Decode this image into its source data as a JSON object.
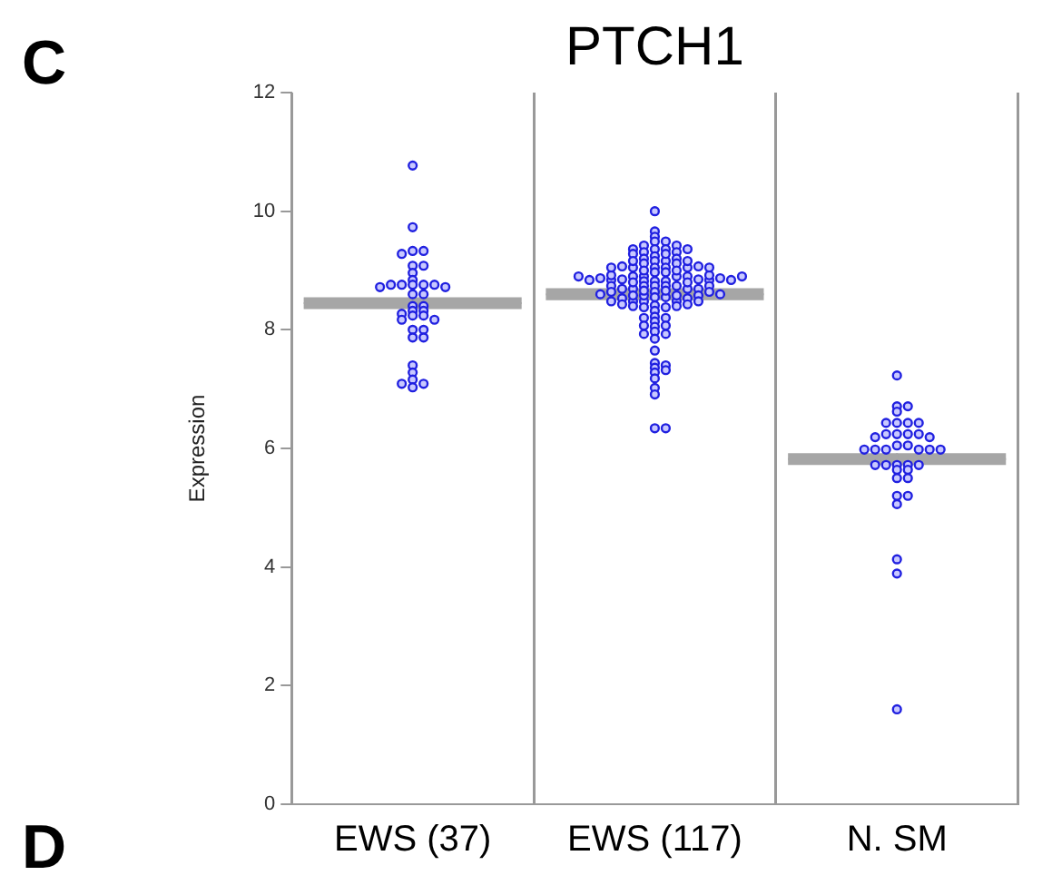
{
  "chart_data": {
    "type": "scatter",
    "title": "PTCH1",
    "ylabel": "Expression",
    "categories": [
      "EWS (37)",
      "EWS (117)",
      "N. SM"
    ],
    "ylim": [
      0,
      12
    ],
    "yticks": [
      0,
      2,
      4,
      6,
      8,
      10,
      12
    ],
    "grid": "x",
    "marker": "circle",
    "annotations": [
      "C",
      "D"
    ],
    "series": [
      {
        "type": "scatter",
        "color": "#2020e0",
        "x": [
          "EWS (37)",
          "EWS (37)",
          "EWS (37)",
          "EWS (37)",
          "EWS (37)",
          "EWS (37)",
          "EWS (37)",
          "EWS (37)",
          "EWS (37)",
          "EWS (37)",
          "EWS (37)",
          "EWS (37)",
          "EWS (37)",
          "EWS (37)",
          "EWS (37)",
          "EWS (37)",
          "EWS (37)",
          "EWS (37)",
          "EWS (37)",
          "EWS (37)",
          "EWS (37)",
          "EWS (37)",
          "EWS (37)",
          "EWS (37)",
          "EWS (37)",
          "EWS (37)",
          "EWS (37)",
          "EWS (37)",
          "EWS (37)",
          "EWS (37)",
          "EWS (37)",
          "EWS (37)",
          "EWS (37)",
          "EWS (37)",
          "EWS (37)",
          "EWS (37)",
          "EWS (37)",
          "EWS (117)",
          "EWS (117)",
          "EWS (117)",
          "EWS (117)",
          "EWS (117)",
          "EWS (117)",
          "EWS (117)",
          "EWS (117)",
          "EWS (117)",
          "EWS (117)",
          "EWS (117)",
          "EWS (117)",
          "EWS (117)",
          "EWS (117)",
          "EWS (117)",
          "EWS (117)",
          "EWS (117)",
          "EWS (117)",
          "EWS (117)",
          "EWS (117)",
          "EWS (117)",
          "EWS (117)",
          "EWS (117)",
          "EWS (117)",
          "EWS (117)",
          "EWS (117)",
          "EWS (117)",
          "EWS (117)",
          "EWS (117)",
          "EWS (117)",
          "EWS (117)",
          "EWS (117)",
          "EWS (117)",
          "EWS (117)",
          "EWS (117)",
          "EWS (117)",
          "EWS (117)",
          "EWS (117)",
          "EWS (117)",
          "EWS (117)",
          "EWS (117)",
          "EWS (117)",
          "EWS (117)",
          "EWS (117)",
          "EWS (117)",
          "EWS (117)",
          "EWS (117)",
          "EWS (117)",
          "EWS (117)",
          "EWS (117)",
          "EWS (117)",
          "EWS (117)",
          "EWS (117)",
          "EWS (117)",
          "EWS (117)",
          "EWS (117)",
          "EWS (117)",
          "EWS (117)",
          "EWS (117)",
          "EWS (117)",
          "EWS (117)",
          "EWS (117)",
          "EWS (117)",
          "EWS (117)",
          "EWS (117)",
          "EWS (117)",
          "EWS (117)",
          "EWS (117)",
          "EWS (117)",
          "EWS (117)",
          "EWS (117)",
          "EWS (117)",
          "EWS (117)",
          "EWS (117)",
          "EWS (117)",
          "EWS (117)",
          "EWS (117)",
          "EWS (117)",
          "EWS (117)",
          "EWS (117)",
          "EWS (117)",
          "EWS (117)",
          "EWS (117)",
          "EWS (117)",
          "EWS (117)",
          "EWS (117)",
          "EWS (117)",
          "EWS (117)",
          "EWS (117)",
          "EWS (117)",
          "EWS (117)",
          "EWS (117)",
          "EWS (117)",
          "EWS (117)",
          "EWS (117)",
          "EWS (117)",
          "EWS (117)",
          "EWS (117)",
          "EWS (117)",
          "EWS (117)",
          "EWS (117)",
          "EWS (117)",
          "EWS (117)",
          "EWS (117)",
          "EWS (117)",
          "EWS (117)",
          "EWS (117)",
          "EWS (117)",
          "EWS (117)",
          "EWS (117)",
          "EWS (117)",
          "EWS (117)",
          "EWS (117)",
          "EWS (117)",
          "EWS (117)",
          "EWS (117)",
          "EWS (117)",
          "N. SM",
          "N. SM",
          "N. SM",
          "N. SM",
          "N. SM",
          "N. SM",
          "N. SM",
          "N. SM",
          "N. SM",
          "N. SM",
          "N. SM",
          "N. SM",
          "N. SM",
          "N. SM",
          "N. SM",
          "N. SM",
          "N. SM",
          "N. SM",
          "N. SM",
          "N. SM",
          "N. SM",
          "N. SM",
          "N. SM",
          "N. SM",
          "N. SM",
          "N. SM",
          "N. SM",
          "N. SM",
          "N. SM",
          "N. SM",
          "N. SM",
          "N. SM",
          "N. SM",
          "N. SM",
          "N. SM",
          "N. SM",
          "N. SM"
        ],
        "values": [
          10.77,
          9.73,
          9.33,
          9.33,
          9.28,
          9.08,
          9.08,
          8.96,
          8.84,
          8.76,
          8.76,
          8.76,
          8.76,
          8.76,
          8.72,
          8.72,
          8.6,
          8.6,
          8.4,
          8.4,
          8.32,
          8.32,
          8.27,
          8.24,
          8.24,
          8.17,
          8.17,
          8.0,
          8.0,
          7.87,
          7.87,
          7.4,
          7.28,
          7.16,
          7.09,
          7.09,
          7.03,
          10.0,
          9.66,
          9.57,
          9.49,
          9.49,
          9.42,
          9.42,
          9.36,
          9.36,
          9.31,
          9.31,
          9.24,
          9.16,
          9.16,
          9.05,
          9.05,
          8.97,
          8.97,
          8.9,
          8.9,
          8.82,
          8.82,
          8.82,
          8.74,
          8.74,
          8.64,
          8.55,
          8.55,
          8.48,
          8.48,
          8.48,
          8.41,
          8.32,
          8.22,
          8.14,
          8.05,
          7.97,
          7.85,
          7.65,
          7.44,
          7.4,
          7.36,
          7.32,
          7.28,
          7.18,
          7.02,
          6.91,
          9.2,
          9.2,
          9.12,
          9.12,
          8.9,
          8.9,
          8.85,
          8.85,
          8.74,
          8.74,
          8.69,
          8.69,
          8.58,
          8.58,
          8.53,
          8.53,
          9.05,
          9.05,
          8.84,
          8.84,
          8.69,
          8.69,
          8.38,
          8.38,
          8.2,
          8.2,
          8.07,
          8.07,
          7.93,
          7.93,
          6.34,
          6.34,
          9.36,
          9.36,
          9.28,
          9.28,
          9.07,
          9.07,
          8.92,
          8.92,
          8.87,
          8.87,
          8.66,
          8.66,
          8.58,
          8.58,
          8.4,
          8.4,
          9.16,
          9.16,
          9.05,
          9.05,
          8.84,
          8.84,
          8.74,
          8.74,
          8.48,
          8.48,
          8.43,
          8.43,
          8.9,
          8.9,
          8.64,
          8.64,
          9.0,
          9.0,
          8.8,
          8.8,
          8.6,
          8.6,
          7.23,
          6.71,
          6.71,
          6.62,
          6.43,
          6.43,
          6.43,
          6.43,
          6.24,
          6.24,
          6.24,
          6.24,
          6.19,
          6.19,
          6.05,
          6.05,
          5.98,
          5.98,
          5.98,
          5.98,
          5.98,
          5.98,
          5.72,
          5.72,
          5.72,
          5.72,
          5.72,
          5.64,
          5.64,
          5.5,
          5.5,
          5.2,
          5.2,
          5.06,
          4.13,
          3.89,
          1.6
        ]
      },
      {
        "type": "box",
        "color": "#a6a6a6",
        "boxes": [
          {
            "low": 8.35,
            "q1": 8.35,
            "median": 8.45,
            "q3": 8.55,
            "high": 8.55
          },
          {
            "low": 8.5,
            "q1": 8.5,
            "median": 8.6,
            "q3": 8.7,
            "high": 8.7
          },
          {
            "low": 5.72,
            "q1": 5.72,
            "median": 5.82,
            "q3": 5.92,
            "high": 5.92
          }
        ]
      }
    ]
  }
}
